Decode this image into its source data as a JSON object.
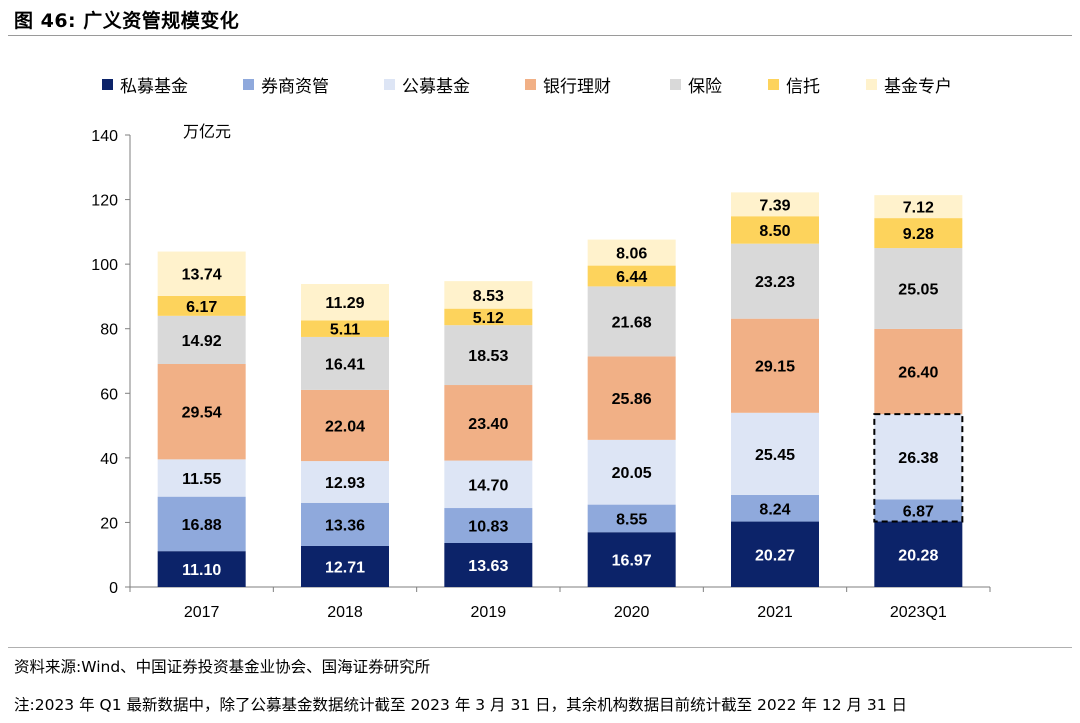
{
  "figure": {
    "title": "图 46:  广义资管规模变化",
    "source": "资料来源:Wind、中国证券投资基金业协会、国海证券研究所",
    "footnote": "注:2023 年 Q1 最新数据中，除了公募基金数据统计截至 2023 年 3 月 31 日，其余机构数据目前统计截至 2022 年 12 月 31 日"
  },
  "chart_data": {
    "type": "bar",
    "stacked": true,
    "title": "",
    "unit_label": "万亿元",
    "categories": [
      "2017",
      "2018",
      "2019",
      "2020",
      "2021",
      "2023Q1"
    ],
    "ylim": [
      0,
      140
    ],
    "yticks": [
      0,
      20,
      40,
      60,
      80,
      100,
      120,
      140
    ],
    "legend_position": "top",
    "grid": false,
    "series": [
      {
        "name": "私募基金",
        "color": "#0c2369",
        "label_color": "#ffffff",
        "values": [
          11.1,
          12.71,
          13.63,
          16.97,
          20.27,
          20.28
        ]
      },
      {
        "name": "券商资管",
        "color": "#8fa9dc",
        "label_color": "#000000",
        "values": [
          16.88,
          13.36,
          10.83,
          8.55,
          8.24,
          6.87
        ]
      },
      {
        "name": "公募基金",
        "color": "#dde5f5",
        "label_color": "#000000",
        "values": [
          11.55,
          12.93,
          14.7,
          20.05,
          25.45,
          26.38
        ]
      },
      {
        "name": "银行理财",
        "color": "#f1b086",
        "label_color": "#000000",
        "values": [
          29.54,
          22.04,
          23.4,
          25.86,
          29.15,
          26.4
        ]
      },
      {
        "name": "保险",
        "color": "#d9d9d9",
        "label_color": "#000000",
        "values": [
          14.92,
          16.41,
          18.53,
          21.68,
          23.23,
          25.05
        ]
      },
      {
        "name": "信托",
        "color": "#fdd35c",
        "label_color": "#000000",
        "values": [
          6.17,
          5.11,
          5.12,
          6.44,
          8.5,
          9.28
        ]
      },
      {
        "name": "基金专户",
        "color": "#fff2cc",
        "label_color": "#000000",
        "values": [
          13.74,
          11.29,
          8.53,
          8.06,
          7.39,
          7.12
        ]
      }
    ],
    "highlighted": {
      "category": "2023Q1",
      "series": [
        "券商资管",
        "公募基金"
      ],
      "style": "dashed-outline"
    }
  }
}
